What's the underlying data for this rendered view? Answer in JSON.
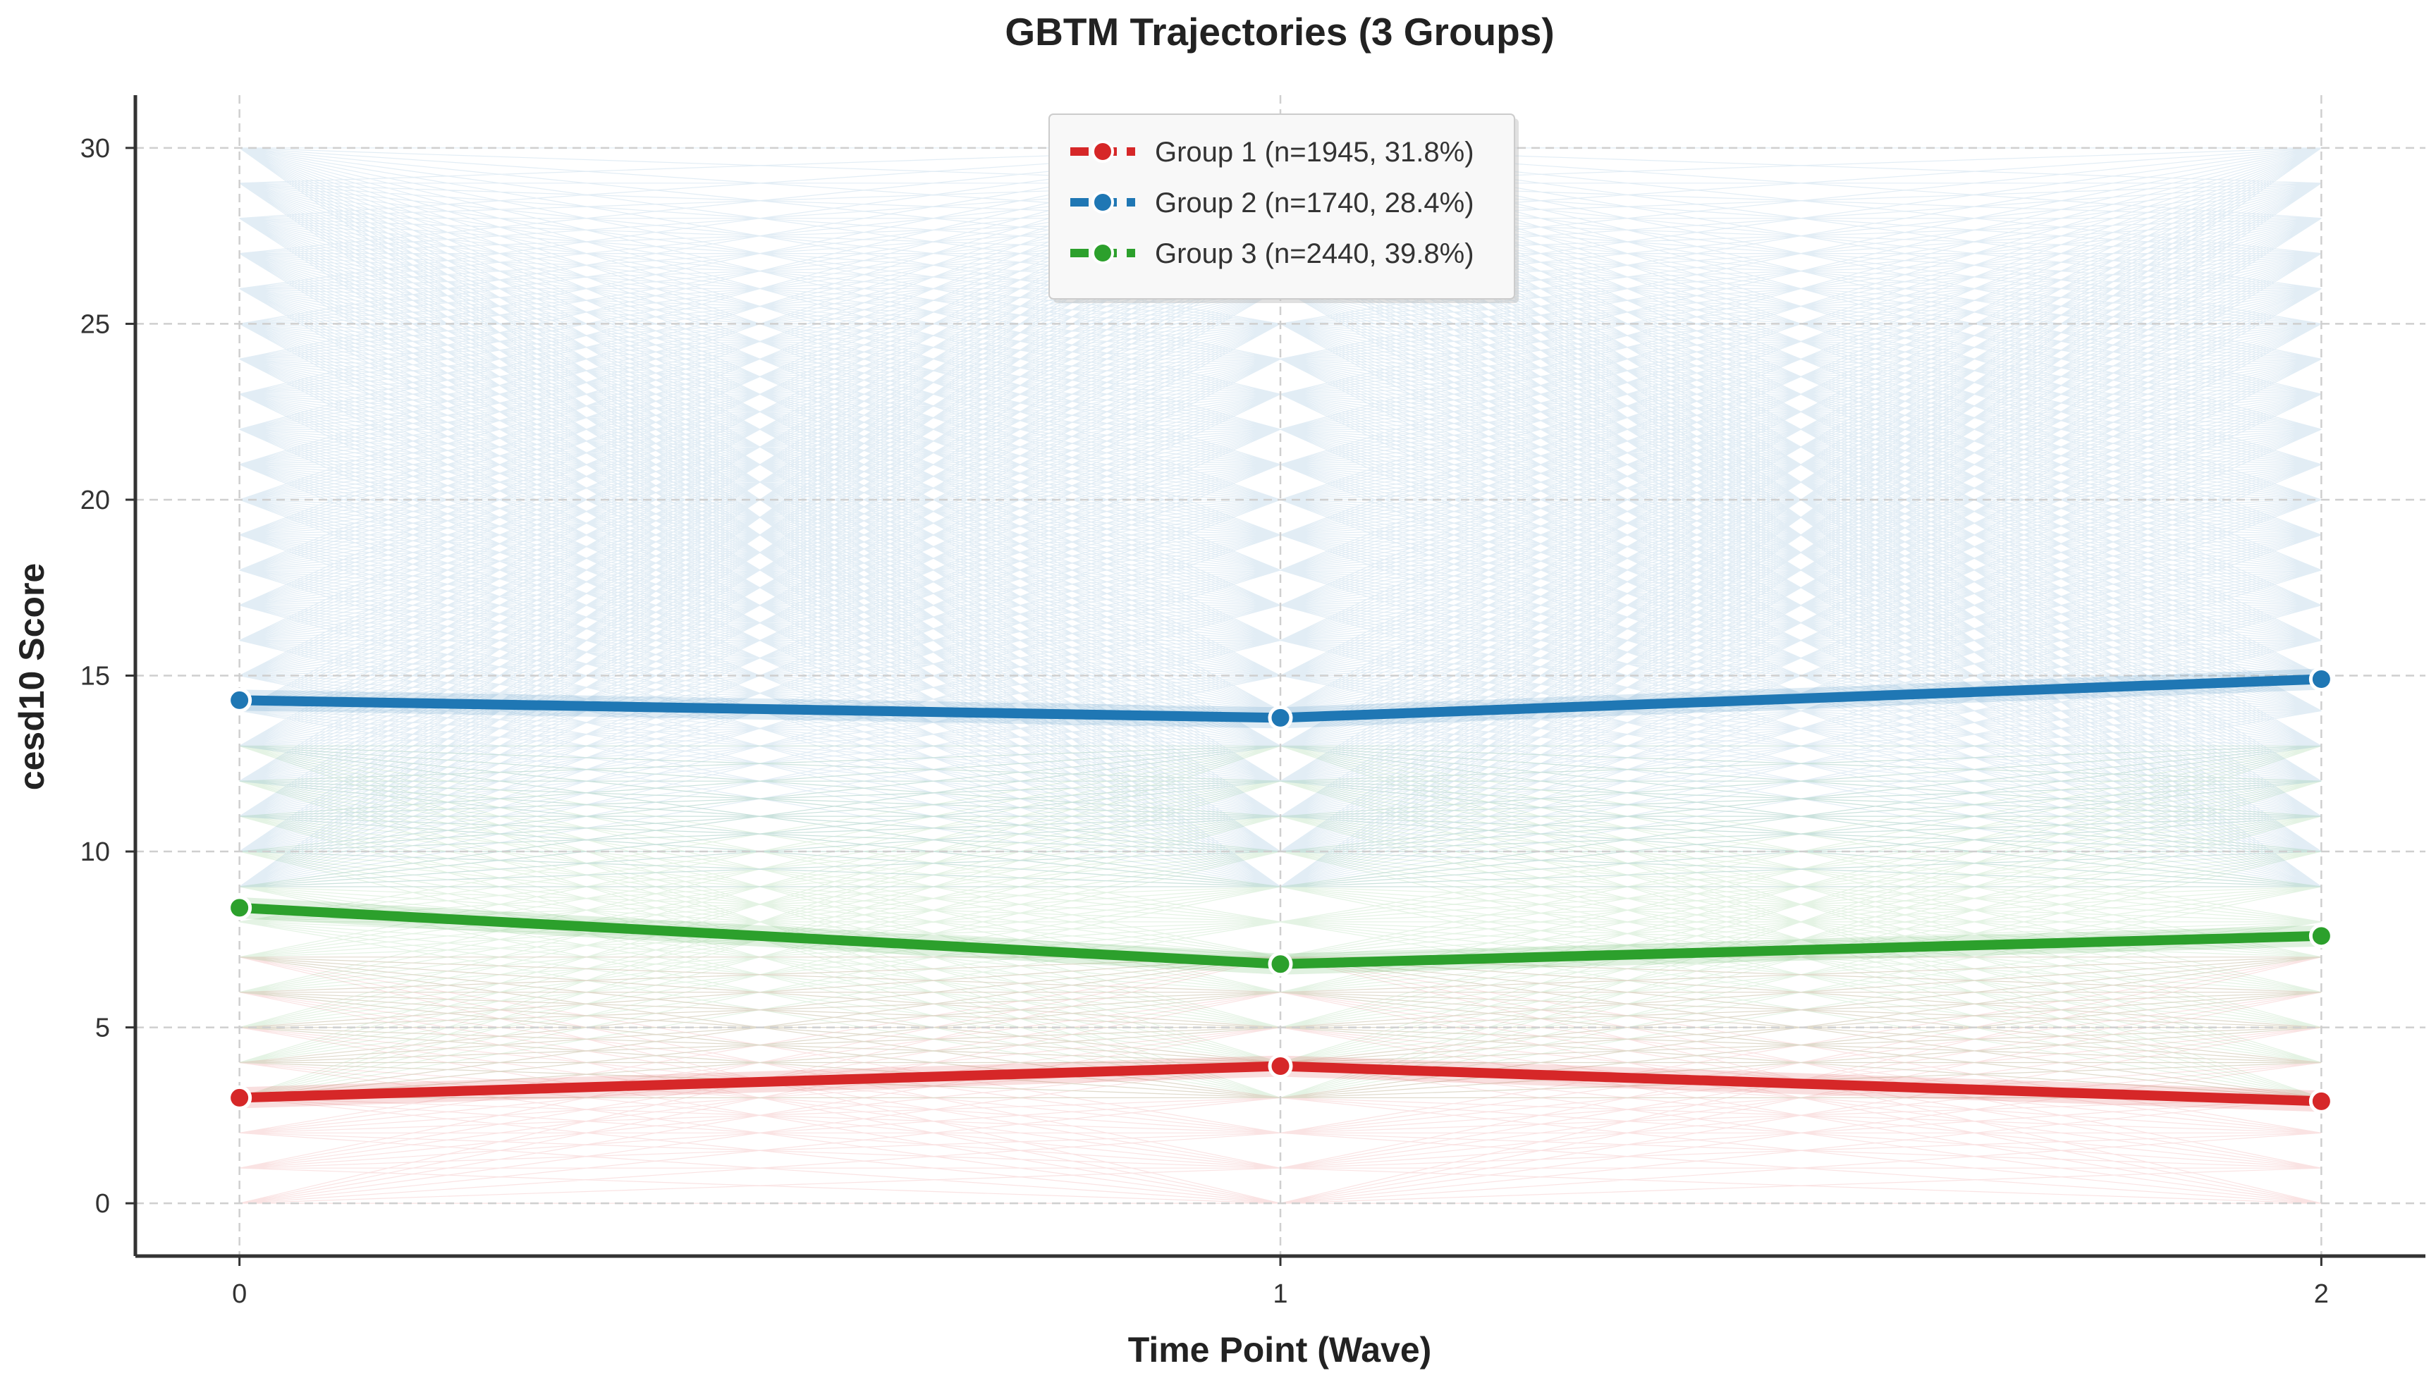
{
  "chart_data": {
    "type": "line",
    "title": "GBTM Trajectories (3 Groups)",
    "xlabel": "Time Point (Wave)",
    "ylabel": "cesd10 Score",
    "x": [
      0,
      1,
      2
    ],
    "x_tick_labels": [
      "0",
      "1",
      "2"
    ],
    "y_ticks": [
      0,
      5,
      10,
      15,
      20,
      25,
      30
    ],
    "y_tick_labels": [
      "0",
      "5",
      "10",
      "15",
      "20",
      "25",
      "30"
    ],
    "xlim": [
      -0.1,
      2.1
    ],
    "ylim": [
      -1.5,
      31.5
    ],
    "grid": true,
    "legend_position": "top-center",
    "series": [
      {
        "name": "Group 1 (n=1945, 31.8%)",
        "color": "#d62728",
        "values": [
          3.0,
          3.9,
          2.9
        ]
      },
      {
        "name": "Group 2 (n=1740, 28.4%)",
        "color": "#1f77b4",
        "values": [
          14.3,
          13.8,
          14.9
        ]
      },
      {
        "name": "Group 3 (n=2440, 39.8%)",
        "color": "#2ca02c",
        "values": [
          8.4,
          6.8,
          7.6
        ]
      }
    ],
    "individual_trajectories": [
      {
        "group": "Group 1 (n=1945, 31.8%)",
        "color": "#d62728",
        "range": [
          0,
          7
        ]
      },
      {
        "group": "Group 3 (n=2440, 39.8%)",
        "color": "#2ca02c",
        "range": [
          3,
          13
        ]
      },
      {
        "group": "Group 2 (n=1740, 28.4%)",
        "color": "#1f77b4",
        "range": [
          9,
          30
        ]
      }
    ]
  }
}
